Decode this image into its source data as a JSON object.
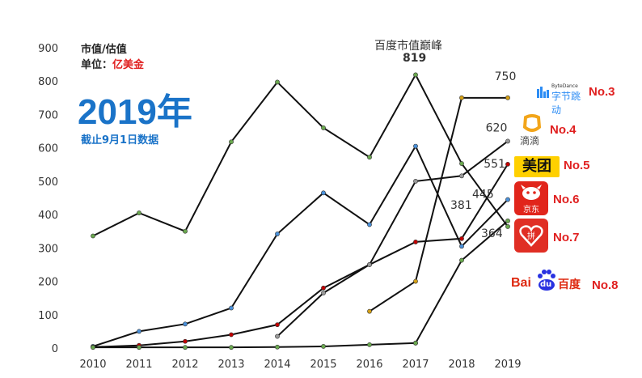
{
  "header": {
    "metric_label": "市值/估值",
    "unit_prefix": "单位：",
    "unit_value": "亿美金",
    "year_big": "2019年",
    "date_note": "截止9月1日数据"
  },
  "annotation": {
    "peak_label": "百度市值巅峰",
    "peak_value": "819"
  },
  "colors": {
    "accent_blue": "#1a73c8",
    "rank_red": "#e02020",
    "line": "#111111"
  },
  "companies": [
    {
      "logo_text": "字节跳动",
      "logo_sub": "ByteDance",
      "rank": "No.3"
    },
    {
      "logo_text": "滴滴",
      "rank": "No.4"
    },
    {
      "logo_text": "美团",
      "rank": "No.5"
    },
    {
      "logo_text": "京东",
      "rank": "No.6"
    },
    {
      "logo_text": "拼",
      "rank": "No.7"
    },
    {
      "logo_text": "Bai",
      "logo_text2": "du",
      "logo_text3": "百度",
      "rank": "No.8"
    }
  ],
  "chart_data": {
    "type": "line",
    "title": "",
    "xlabel": "",
    "ylabel": "",
    "ylim": [
      0,
      900
    ],
    "yticks": [
      0,
      100,
      200,
      300,
      400,
      500,
      600,
      700,
      800,
      900
    ],
    "x": [
      "2010",
      "2011",
      "2012",
      "2013",
      "2014",
      "2015",
      "2016",
      "2017",
      "2018",
      "2019"
    ],
    "series": [
      {
        "name": "",
        "dot": "#6aa84f",
        "values": [
          336,
          405,
          350,
          618,
          797,
          660,
          572,
          819,
          553,
          364
        ]
      },
      {
        "name": "",
        "dot": "#4a90d9",
        "values": [
          5,
          50,
          72,
          120,
          342,
          465,
          370,
          605,
          305,
          445
        ]
      },
      {
        "name": "",
        "dot": "#c00000",
        "values": [
          3,
          8,
          20,
          40,
          70,
          180,
          250,
          318,
          328,
          551
        ]
      },
      {
        "name": "",
        "dot": "#999999",
        "values": [
          null,
          null,
          null,
          null,
          35,
          165,
          250,
          500,
          516,
          620
        ]
      },
      {
        "name": "",
        "dot": "#d4a017",
        "values": [
          null,
          null,
          null,
          null,
          null,
          null,
          110,
          200,
          750,
          750
        ]
      },
      {
        "name": "",
        "dot": "#6aa84f",
        "values": [
          null,
          null,
          null,
          null,
          null,
          null,
          null,
          15,
          263,
          381
        ]
      },
      {
        "name": "",
        "dot": "#6aa84f",
        "values": [
          2,
          2,
          2,
          2,
          3,
          5,
          10,
          15,
          null,
          null
        ]
      }
    ],
    "data_labels": [
      {
        "x": "2019",
        "value": "750"
      },
      {
        "x": "2019",
        "value": "620"
      },
      {
        "x": "2019",
        "value": "551"
      },
      {
        "x": "2019",
        "value": "445"
      },
      {
        "x": "2019",
        "value": "381"
      },
      {
        "x": "2019",
        "value": "364"
      }
    ],
    "grid": false,
    "legend": "none"
  }
}
